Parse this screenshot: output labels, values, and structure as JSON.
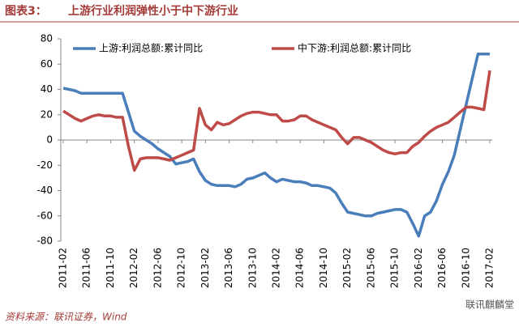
{
  "chart_data": {
    "type": "line",
    "label": "图表3：",
    "title": "上游行业利润弹性小于中下游行业",
    "source": "资料来源：联讯证券，Wind",
    "watermark": "联讯麒麟堂",
    "categories": [
      "2011-02",
      null,
      null,
      null,
      "2011-06",
      null,
      null,
      null,
      "2011-10",
      null,
      null,
      null,
      "2012-02",
      null,
      null,
      null,
      "2012-06",
      null,
      null,
      null,
      "2012-10",
      null,
      null,
      null,
      "2013-02",
      null,
      null,
      null,
      "2013-06",
      null,
      null,
      null,
      "2013-10",
      null,
      null,
      null,
      "2014-02",
      null,
      null,
      null,
      "2014-06",
      null,
      null,
      null,
      "2014-10",
      null,
      null,
      null,
      "2015-02",
      null,
      null,
      null,
      "2015-06",
      null,
      null,
      null,
      "2015-10",
      null,
      null,
      null,
      "2016-02",
      null,
      null,
      null,
      "2016-06",
      null,
      null,
      null,
      "2016-10",
      null,
      null,
      null,
      "2017-02"
    ],
    "series": [
      {
        "name": "上游:利润总额:累计同比",
        "color": "#4a7ebb",
        "values": [
          41,
          40,
          39,
          37,
          37,
          37,
          37,
          37,
          37,
          37,
          37,
          22,
          7,
          3,
          0,
          -3,
          -7,
          -10,
          -13,
          -19,
          -18,
          -17,
          -15,
          -25,
          -32,
          -35,
          -36,
          -36,
          -36,
          -37,
          -35,
          -31,
          -30,
          -28,
          -26,
          -30,
          -33,
          -31,
          -32,
          -33,
          -33,
          -34,
          -36,
          -36,
          -37,
          -38,
          -42,
          -50,
          -57,
          -58,
          -59,
          -60,
          -60,
          -58,
          -57,
          -56,
          -55,
          -55,
          -57,
          -66,
          -76,
          -60,
          -57,
          -48,
          -35,
          -25,
          -12,
          8,
          28,
          48,
          68,
          68,
          68
        ]
      },
      {
        "name": "中下游:利润总额:累计同比",
        "color": "#be4b48",
        "values": [
          23,
          20,
          17,
          15,
          17,
          19,
          20,
          19,
          19,
          18,
          18,
          -5,
          -24,
          -15,
          -14,
          -14,
          -14,
          -15,
          -16,
          -14,
          -12,
          -10,
          -8,
          25,
          12,
          8,
          14,
          12,
          13,
          16,
          19,
          21,
          22,
          22,
          21,
          20,
          20,
          15,
          15,
          16,
          19,
          19,
          16,
          14,
          12,
          10,
          8,
          2,
          -3,
          2,
          2,
          0,
          -2,
          -5,
          -8,
          -10,
          -11,
          -10,
          -10,
          -5,
          -2,
          3,
          7,
          10,
          12,
          14,
          18,
          22,
          26,
          26,
          25,
          24,
          55
        ]
      }
    ],
    "ylim": [
      -80,
      80
    ],
    "yticks": [
      -80,
      -60,
      -40,
      -20,
      0,
      20,
      40,
      60,
      80
    ],
    "grid": false
  }
}
